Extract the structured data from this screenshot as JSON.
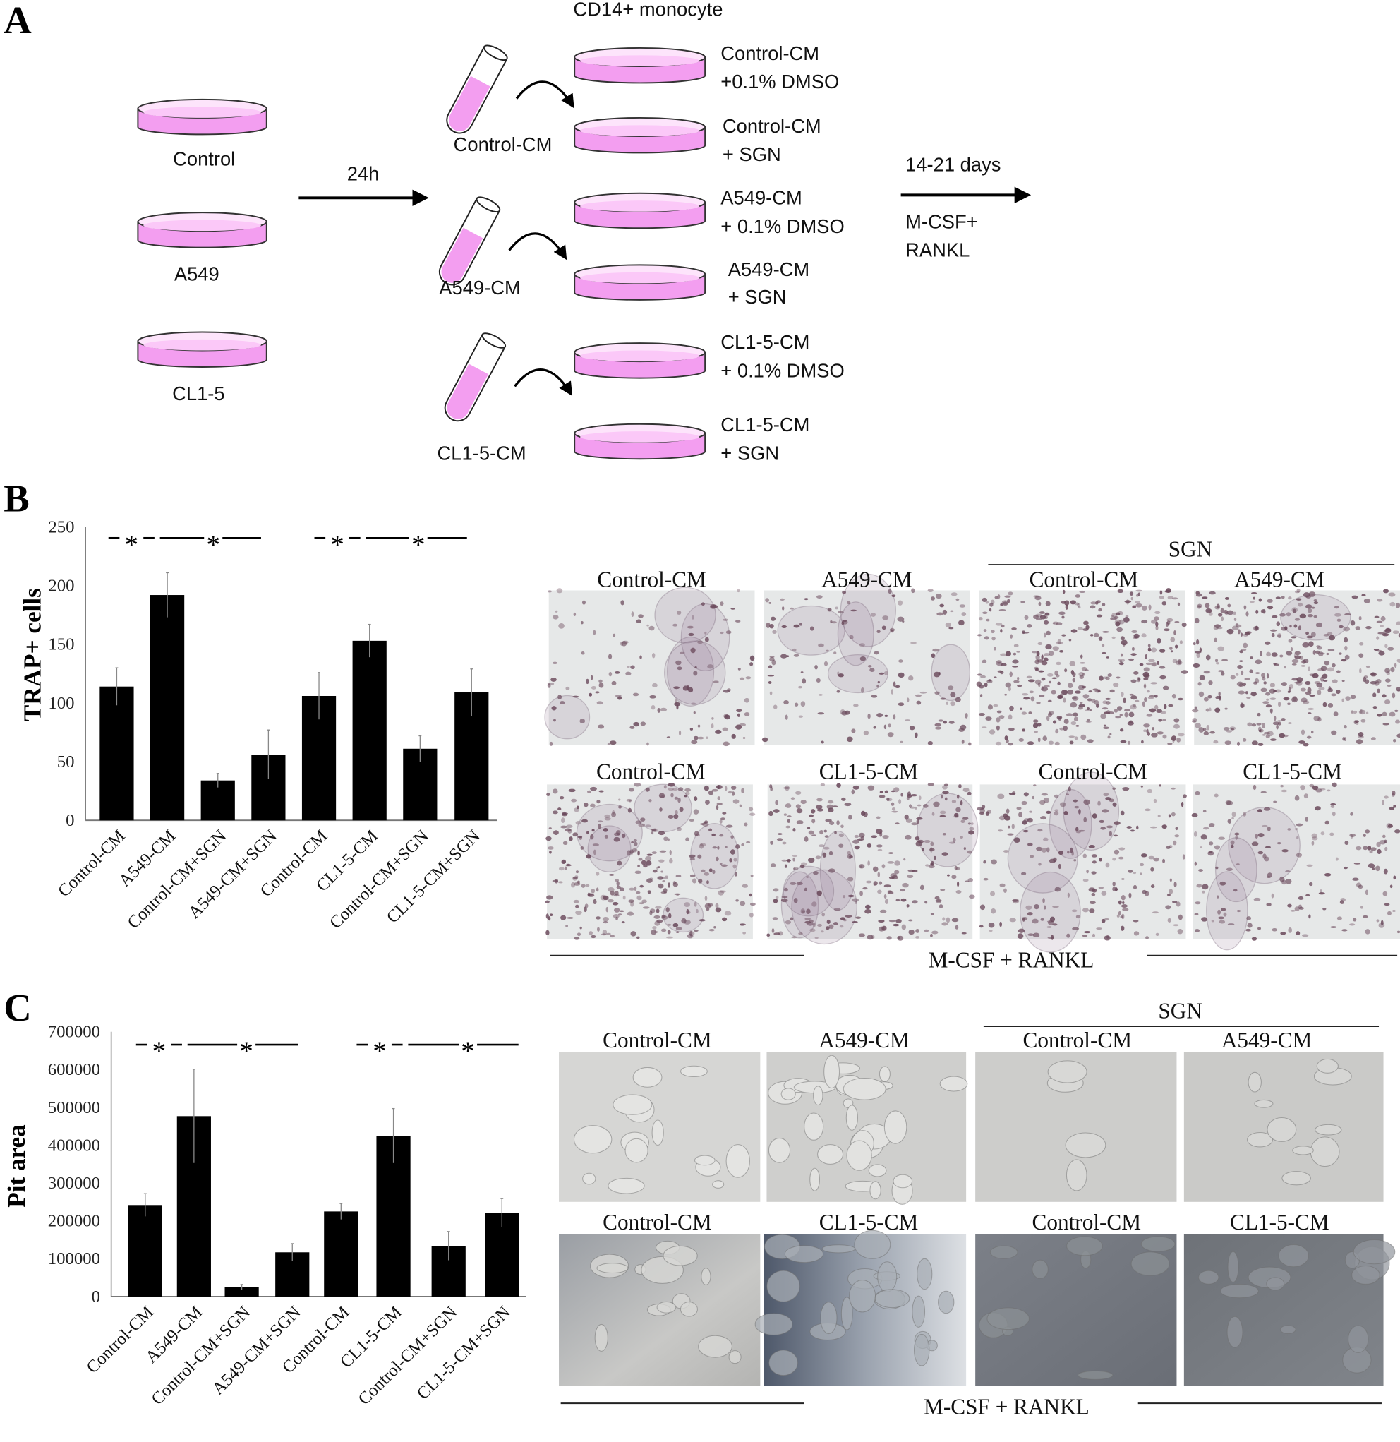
{
  "panels": {
    "a": "A",
    "b": "B",
    "c": "C"
  },
  "colors": {
    "medium": "#f39ef0",
    "medium_light": "#fbc8f8",
    "bar": "#000000",
    "stain": "#6b4a5c"
  },
  "diagram": {
    "header": "CD14+ monocyte",
    "cell_lines": [
      "Control",
      "A549",
      "CL1-5"
    ],
    "step1_label": "24h",
    "cm_tubes": [
      "Control-CM",
      "A549-CM",
      "CL1-5-CM"
    ],
    "treatments": [
      {
        "line1": "Control-CM",
        "line2": "+0.1% DMSO"
      },
      {
        "line1": "Control-CM",
        "line2": "+ SGN"
      },
      {
        "line1": "A549-CM",
        "line2": "+ 0.1% DMSO"
      },
      {
        "line1": "A549-CM",
        "line2": "+ SGN"
      },
      {
        "line1": "CL1-5-CM",
        "line2": "+ 0.1% DMSO"
      },
      {
        "line1": "CL1-5-CM",
        "line2": "+ SGN"
      }
    ],
    "step2_label": "14-21 days",
    "step2_conditions": [
      "M-CSF+",
      "RANKL"
    ]
  },
  "chart_data": [
    {
      "type": "bar",
      "panel": "B",
      "ylabel": "TRAP+ cells",
      "xlabel": "",
      "ylim": [
        0,
        250
      ],
      "yticks": [
        0,
        50,
        100,
        150,
        200,
        250
      ],
      "categories": [
        "Control-CM",
        "A549-CM",
        "Control-CM+SGN",
        "A549-CM+SGN",
        "Control-CM",
        "CL1-5-CM",
        "Control-CM+SGN",
        "CL1-5-CM+SGN"
      ],
      "values": [
        114,
        192,
        34,
        56,
        106,
        153,
        61,
        109
      ],
      "error_upper": [
        130,
        211,
        40,
        77,
        126,
        167,
        72,
        129
      ],
      "significance": [
        "*",
        "*",
        "*",
        "*"
      ],
      "grid": false
    },
    {
      "type": "bar",
      "panel": "C",
      "ylabel": "Pit area",
      "xlabel": "",
      "ylim": [
        0,
        700000
      ],
      "yticks": [
        0,
        100000,
        200000,
        300000,
        400000,
        500000,
        600000,
        700000
      ],
      "categories": [
        "Control-CM",
        "A549-CM",
        "Control-CM+SGN",
        "A549-CM+SGN",
        "Control-CM",
        "CL1-5-CM",
        "Control-CM+SGN",
        "CL1-5-CM+SGN"
      ],
      "values": [
        242000,
        477000,
        25000,
        117000,
        225000,
        425000,
        134000,
        221000
      ],
      "error_upper": [
        272000,
        601000,
        32000,
        140000,
        246000,
        497000,
        172000,
        259000
      ],
      "significance": [
        "*",
        "*",
        "*",
        "*"
      ],
      "grid": false
    }
  ],
  "micrographs_b": {
    "group_label": "SGN",
    "condition_label": "M-CSF + RANKL",
    "row1_titles": [
      "Control-CM",
      "A549-CM",
      "Control-CM",
      "A549-CM"
    ],
    "row2_titles": [
      "Control-CM",
      "CL1-5-CM",
      "Control-CM",
      "CL1-5-CM"
    ]
  },
  "micrographs_c": {
    "group_label": "SGN",
    "condition_label": "M-CSF + RANKL",
    "row1_titles": [
      "Control-CM",
      "A549-CM",
      "Control-CM",
      "A549-CM"
    ],
    "row2_titles": [
      "Control-CM",
      "CL1-5-CM",
      "Control-CM",
      "CL1-5-CM"
    ]
  }
}
